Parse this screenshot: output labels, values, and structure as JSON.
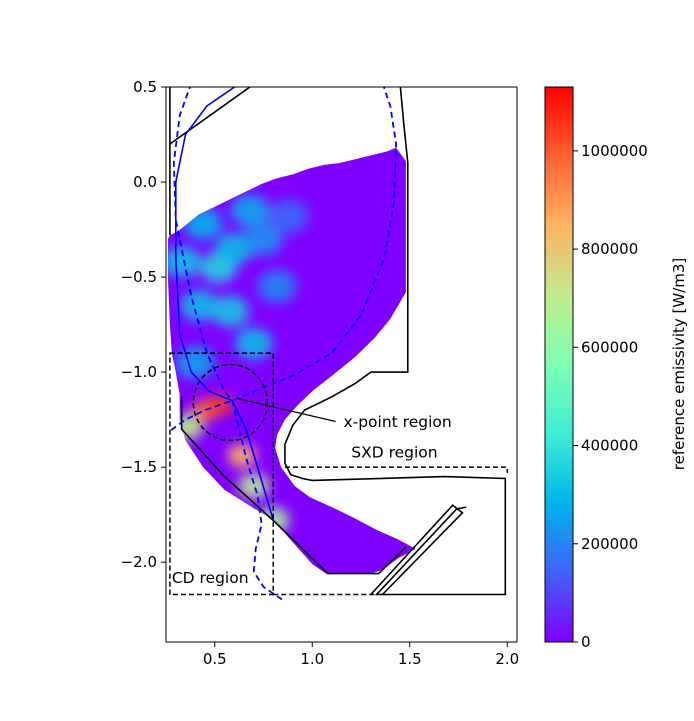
{
  "chart_data": {
    "type": "heatmap",
    "title": "",
    "xlabel": "",
    "ylabel": "",
    "xlim": [
      0.25,
      2.05
    ],
    "ylim": [
      -2.42,
      0.5
    ],
    "x_ticks": [
      0.5,
      1.0,
      1.5,
      2.0
    ],
    "x_tick_labels": [
      "0.5",
      "1.0",
      "1.5",
      "2.0"
    ],
    "y_ticks": [
      0.5,
      0.0,
      -0.5,
      -1.0,
      -1.5,
      -2.0
    ],
    "y_tick_labels": [
      "0.5",
      "0.0",
      "−0.5",
      "−1.0",
      "−1.5",
      "−2.0"
    ],
    "grid": false,
    "colorbar": {
      "label": "reference emissivity [W/m3]",
      "min": 0,
      "max": 1130000,
      "ticks": [
        0,
        200000,
        400000,
        600000,
        800000,
        1000000
      ],
      "tick_labels": [
        "0",
        "200000",
        "400000",
        "600000",
        "800000",
        "1000000"
      ],
      "colormap": "rainbow"
    },
    "colormap_stops": [
      "#8000ff",
      "#4062fa",
      "#00b5eb",
      "#40ecd4",
      "#80ffb4",
      "#c0eb8d",
      "#ffb462",
      "#ff6231",
      "#ff0000"
    ],
    "emission_hotspots": [
      {
        "x": 0.45,
        "y": -1.2,
        "value": 980000
      },
      {
        "x": 0.53,
        "y": -1.17,
        "value": 1050000
      },
      {
        "x": 0.64,
        "y": -1.44,
        "value": 850000
      },
      {
        "x": 0.7,
        "y": -1.6,
        "value": 700000
      },
      {
        "x": 0.36,
        "y": -1.29,
        "value": 700000
      },
      {
        "x": 0.8,
        "y": -1.78,
        "value": 650000
      },
      {
        "x": 0.33,
        "y": -0.42,
        "value": 320000
      },
      {
        "x": 0.44,
        "y": -0.22,
        "value": 280000
      },
      {
        "x": 0.52,
        "y": -0.45,
        "value": 360000
      },
      {
        "x": 0.6,
        "y": -0.35,
        "value": 300000
      },
      {
        "x": 0.42,
        "y": -0.65,
        "value": 300000
      },
      {
        "x": 0.58,
        "y": -0.68,
        "value": 330000
      },
      {
        "x": 0.7,
        "y": -0.85,
        "value": 300000
      },
      {
        "x": 0.68,
        "y": -0.15,
        "value": 260000
      },
      {
        "x": 0.82,
        "y": -0.55,
        "value": 200000
      },
      {
        "x": 0.75,
        "y": -0.3,
        "value": 220000
      },
      {
        "x": 0.4,
        "y": -0.95,
        "value": 250000
      },
      {
        "x": 0.88,
        "y": -0.18,
        "value": 150000
      }
    ],
    "annotations": [
      {
        "text": "x-point region",
        "target": [
          0.59,
          -1.14
        ]
      },
      {
        "text": "SXD region"
      },
      {
        "text": "CD region"
      }
    ]
  }
}
